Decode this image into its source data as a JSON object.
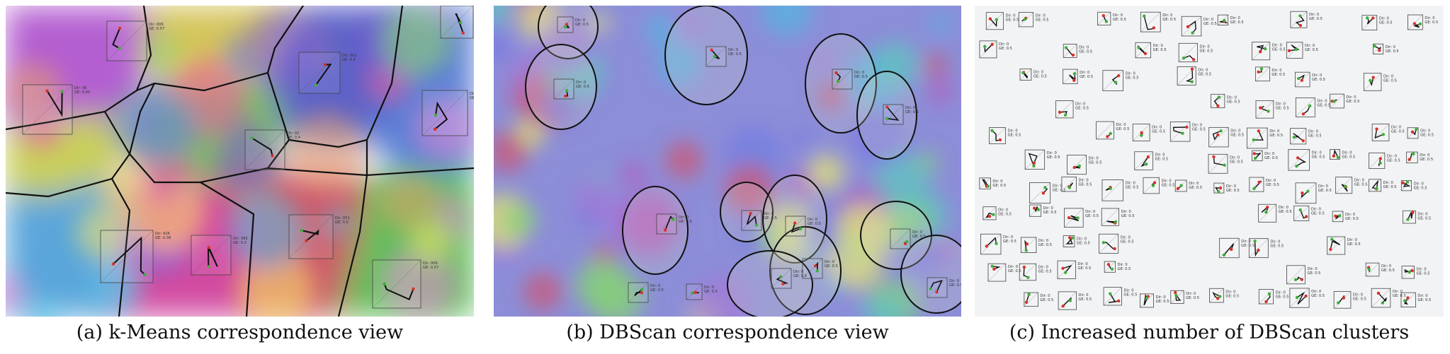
{
  "panels": [
    {
      "caption": "(a)  k-Means correspondence view",
      "clusters": [
        {
          "color": "#b45fd0"
        },
        {
          "color": "#d4c45a"
        },
        {
          "color": "#5d62c8"
        },
        {
          "color": "#c9cf5a"
        },
        {
          "color": "#5a7fd5"
        },
        {
          "color": "#7fba6a"
        },
        {
          "color": "#5aa6da"
        },
        {
          "color": "#d24aa0"
        },
        {
          "color": "#cc5a6a"
        },
        {
          "color": "#5fbf5a"
        },
        {
          "color": "#8a6ad0"
        }
      ],
      "glyph_labels": [
        "Dir: 006\nGE: 0.57",
        "Dir: 001\nGE: 0.4",
        "Dir: 06\nGE: 0.45",
        "Dir: 073\nGE: 0.4",
        "Dir: 02\nGE: 0.4",
        "Dir: 426\nGE: 0.38",
        "Dir: 365\nGE: 0.3",
        "Dir: 051\nGE: 0.5"
      ]
    },
    {
      "caption": "(b)  DBScan correspondence view",
      "clusters": [
        {
          "name": ""
        },
        {
          "name": ""
        },
        {
          "name": ""
        },
        {
          "name": ""
        },
        {
          "name": ""
        },
        {
          "name": ""
        },
        {
          "name": ""
        },
        {
          "name": ""
        },
        {
          "name": ""
        },
        {
          "name": ""
        },
        {
          "name": ""
        },
        {
          "name": ""
        }
      ]
    },
    {
      "caption": "(c)  Increased number of DBScan clusters"
    }
  ],
  "colors": {
    "background_c": "#f2f3f5",
    "outline": "#111111",
    "marker_red": "#d8322a",
    "marker_green": "#3fae3a"
  }
}
